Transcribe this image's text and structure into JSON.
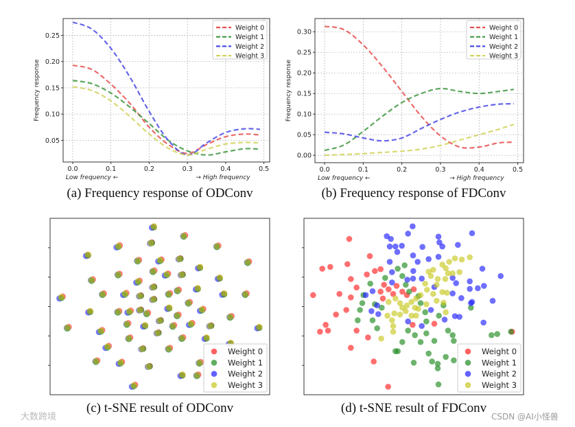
{
  "captions": {
    "a": "(a) Frequency response of ODConv",
    "b": "(b) Frequency response of FDConv",
    "c": "(c) t-SNE result of ODConv",
    "d": "(d) t-SNE result of FDConv"
  },
  "watermarks": {
    "left": "大数跨境",
    "right": "CSDN @AI小怪兽"
  },
  "colors": {
    "line": [
      "#e8504f",
      "#3f963f",
      "#4a4ae6",
      "#d2d25a"
    ],
    "scatter": [
      "#ff2020",
      "#1f8a1f",
      "#2020ff",
      "#c8c820"
    ]
  },
  "chart_data": [
    {
      "type": "line",
      "id": "a",
      "ylabel": "Frequency response",
      "xnote_left": "Low frequency ←",
      "xnote_right": "→ High frequency",
      "xlim": [
        -0.025,
        0.515
      ],
      "ylim": [
        0.0087,
        0.282
      ],
      "xticks": [
        "0.0",
        "0.1",
        "0.2",
        "0.3",
        "0.4",
        "0.5"
      ],
      "yticks": [
        "0.05",
        "0.10",
        "0.15",
        "0.20",
        "0.25"
      ],
      "grid": true,
      "legend": "top-right",
      "x": [
        0,
        0.05,
        0.1,
        0.15,
        0.2,
        0.25,
        0.3,
        0.35,
        0.4,
        0.45,
        0.49
      ],
      "series": [
        {
          "name": "Weight 0",
          "values": [
            0.193,
            0.185,
            0.157,
            0.12,
            0.075,
            0.042,
            0.025,
            0.042,
            0.057,
            0.062,
            0.06
          ]
        },
        {
          "name": "Weight 1",
          "values": [
            0.164,
            0.158,
            0.14,
            0.113,
            0.082,
            0.05,
            0.03,
            0.022,
            0.028,
            0.034,
            0.033
          ]
        },
        {
          "name": "Weight 2",
          "values": [
            0.275,
            0.262,
            0.225,
            0.17,
            0.105,
            0.05,
            0.022,
            0.045,
            0.065,
            0.072,
            0.071
          ]
        },
        {
          "name": "Weight 3",
          "values": [
            0.152,
            0.145,
            0.125,
            0.095,
            0.062,
            0.035,
            0.022,
            0.033,
            0.043,
            0.046,
            0.045
          ]
        }
      ]
    },
    {
      "type": "line",
      "id": "b",
      "ylabel": "Frequency response",
      "xnote_left": "Low frequency ←",
      "xnote_right": "→ High frequency",
      "xlim": [
        -0.025,
        0.515
      ],
      "ylim": [
        -0.018,
        0.332
      ],
      "xticks": [
        "0.0",
        "0.1",
        "0.2",
        "0.3",
        "0.4",
        "0.5"
      ],
      "yticks": [
        "0.00",
        "0.05",
        "0.10",
        "0.15",
        "0.20",
        "0.25",
        "0.30"
      ],
      "grid": true,
      "legend": "top-right",
      "x": [
        0,
        0.05,
        0.1,
        0.15,
        0.2,
        0.25,
        0.3,
        0.35,
        0.4,
        0.45,
        0.49
      ],
      "series": [
        {
          "name": "Weight 0",
          "values": [
            0.313,
            0.305,
            0.268,
            0.215,
            0.155,
            0.095,
            0.047,
            0.02,
            0.02,
            0.03,
            0.032
          ]
        },
        {
          "name": "Weight 1",
          "values": [
            0.012,
            0.025,
            0.058,
            0.095,
            0.128,
            0.15,
            0.162,
            0.155,
            0.15,
            0.155,
            0.16
          ]
        },
        {
          "name": "Weight 2",
          "values": [
            0.056,
            0.052,
            0.042,
            0.035,
            0.042,
            0.065,
            0.087,
            0.105,
            0.117,
            0.124,
            0.125
          ]
        },
        {
          "name": "Weight 3",
          "values": [
            0.0,
            0.002,
            0.004,
            0.007,
            0.01,
            0.015,
            0.024,
            0.037,
            0.05,
            0.063,
            0.075
          ]
        }
      ]
    },
    {
      "type": "scatter",
      "id": "c",
      "legend": "bottom-right",
      "xlim": [
        0,
        100
      ],
      "ylim": [
        0,
        100
      ],
      "series_names": [
        "Weight 0",
        "Weight 1",
        "Weight 2",
        "Weight 3"
      ],
      "note": "all four weights overlap at each cluster",
      "clusters": [
        [
          47,
          95
        ],
        [
          61,
          90
        ],
        [
          31,
          84
        ],
        [
          46,
          86
        ],
        [
          76,
          84
        ],
        [
          17,
          79
        ],
        [
          40,
          76
        ],
        [
          50,
          76
        ],
        [
          59,
          77
        ],
        [
          90,
          75
        ],
        [
          68,
          72
        ],
        [
          47,
          70
        ],
        [
          53,
          68
        ],
        [
          60,
          68
        ],
        [
          31,
          68
        ],
        [
          77,
          66
        ],
        [
          19,
          65
        ],
        [
          40,
          64
        ],
        [
          47,
          61
        ],
        [
          58,
          59
        ],
        [
          67,
          60
        ],
        [
          24,
          57
        ],
        [
          34,
          57
        ],
        [
          41,
          56
        ],
        [
          54,
          57
        ],
        [
          79,
          57
        ],
        [
          89,
          57
        ],
        [
          5,
          55
        ],
        [
          47,
          54
        ],
        [
          63,
          52
        ],
        [
          18,
          47
        ],
        [
          31,
          47
        ],
        [
          36,
          47
        ],
        [
          41,
          48
        ],
        [
          44,
          46
        ],
        [
          54,
          49
        ],
        [
          58,
          45
        ],
        [
          69,
          48
        ],
        [
          50,
          42
        ],
        [
          35,
          40
        ],
        [
          43,
          39
        ],
        [
          56,
          39
        ],
        [
          64,
          40
        ],
        [
          73,
          39
        ],
        [
          82,
          44
        ],
        [
          95,
          38
        ],
        [
          8,
          38
        ],
        [
          23,
          36
        ],
        [
          49,
          35
        ],
        [
          60,
          32
        ],
        [
          71,
          32
        ],
        [
          36,
          32
        ],
        [
          26,
          27
        ],
        [
          42,
          26
        ],
        [
          54,
          26
        ],
        [
          82,
          29
        ],
        [
          21,
          19
        ],
        [
          32,
          18
        ],
        [
          45,
          16
        ],
        [
          68,
          18
        ],
        [
          60,
          11
        ],
        [
          67,
          11
        ],
        [
          38,
          5
        ]
      ]
    },
    {
      "type": "scatter",
      "id": "d",
      "legend": "bottom-right",
      "xlim": [
        1,
        97
      ],
      "ylim": [
        2,
        79
      ],
      "series": [
        {
          "name": "Weight 0",
          "points": [
            [
              20.8,
              70
            ],
            [
              29.8,
              62.5
            ],
            [
              9,
              57
            ],
            [
              12.5,
              57.8
            ],
            [
              20,
              59
            ],
            [
              21.5,
              52.5
            ],
            [
              32,
              56
            ],
            [
              34.5,
              56.8
            ],
            [
              28.5,
              54.5
            ],
            [
              24,
              48.8
            ],
            [
              16.5,
              46
            ],
            [
              5,
              45.5
            ],
            [
              21.5,
              44.5
            ],
            [
              19.5,
              39
            ],
            [
              15,
              37
            ],
            [
              10.5,
              32.5
            ],
            [
              8,
              29.5
            ],
            [
              11.5,
              30
            ],
            [
              24,
              30
            ],
            [
              29,
              27
            ],
            [
              21.5,
              22.5
            ],
            [
              31.5,
              16.5
            ],
            [
              37.8,
              5.5
            ],
            [
              36,
              50
            ],
            [
              34.5,
              47
            ],
            [
              38,
              48
            ],
            [
              41.5,
              49.5
            ],
            [
              40,
              46
            ],
            [
              44,
              47
            ],
            [
              46,
              45.5
            ],
            [
              49,
              48
            ],
            [
              35.5,
              44
            ],
            [
              48.5,
              32.5
            ],
            [
              58,
              33
            ],
            [
              92,
              29.5
            ]
          ]
        },
        {
          "name": "Weight 1",
          "points": [
            [
              45,
              58.5
            ],
            [
              42,
              57
            ],
            [
              36.5,
              53
            ],
            [
              44,
              53.8
            ],
            [
              30,
              50.5
            ],
            [
              27,
              45.5
            ],
            [
              26.5,
              42
            ],
            [
              32,
              41.5
            ],
            [
              35,
              40
            ],
            [
              25.5,
              39
            ],
            [
              24.5,
              34.5
            ],
            [
              31,
              34.5
            ],
            [
              33,
              31
            ],
            [
              45.5,
              50
            ],
            [
              47,
              47
            ],
            [
              51,
              45
            ],
            [
              52,
              42
            ],
            [
              54,
              38
            ],
            [
              54.5,
              34
            ],
            [
              60,
              36.5
            ],
            [
              62,
              41
            ],
            [
              46.5,
              30
            ],
            [
              49.5,
              28
            ],
            [
              54.5,
              28.8
            ],
            [
              44,
              25
            ],
            [
              52,
              25
            ],
            [
              58,
              25.5
            ],
            [
              64,
              30
            ],
            [
              66,
              28
            ],
            [
              66.5,
              25.5
            ],
            [
              42,
              21
            ],
            [
              41,
              21
            ],
            [
              55.5,
              20
            ],
            [
              57,
              16.5
            ],
            [
              59.5,
              15.5
            ],
            [
              59.5,
              13.5
            ],
            [
              49,
              16
            ],
            [
              63,
              18.5
            ],
            [
              66.5,
              17
            ],
            [
              83,
              28
            ],
            [
              85.5,
              28.5
            ],
            [
              91.5,
              29.5
            ],
            [
              74,
              40
            ],
            [
              59.8,
              6.5
            ]
          ]
        },
        {
          "name": "Weight 2",
          "points": [
            [
              37.2,
              71.2
            ],
            [
              39,
              70
            ],
            [
              46.5,
              72.3
            ],
            [
              48.5,
              75.5
            ],
            [
              59.8,
              71
            ],
            [
              60.2,
              68.5
            ],
            [
              61.5,
              66.7
            ],
            [
              74.5,
              72.5
            ],
            [
              38.5,
              66.7
            ],
            [
              41,
              66.7
            ],
            [
              43.8,
              67
            ],
            [
              41.8,
              64.3
            ],
            [
              52.8,
              66.5
            ],
            [
              68.3,
              67.4
            ],
            [
              48.7,
              62.8
            ],
            [
              50.7,
              60
            ],
            [
              55.5,
              61.2
            ],
            [
              59.8,
              62.2
            ],
            [
              38.5,
              60
            ],
            [
              48.8,
              56
            ],
            [
              46.2,
              52.2
            ],
            [
              48.7,
              52.7
            ],
            [
              52.5,
              52.7
            ],
            [
              39.5,
              55.5
            ],
            [
              39.5,
              51
            ],
            [
              31,
              47.2
            ],
            [
              28,
              45.5
            ],
            [
              33,
              41
            ],
            [
              30.5,
              38.5
            ],
            [
              33.5,
              37.2
            ],
            [
              46.5,
              34
            ],
            [
              52.5,
              32
            ],
            [
              56.5,
              39
            ],
            [
              62.5,
              34.8
            ],
            [
              67,
              36.3
            ],
            [
              69,
              36
            ],
            [
              79.5,
              33.5
            ],
            [
              74,
              42
            ],
            [
              74.5,
              42.5
            ],
            [
              83.5,
              43
            ],
            [
              69.8,
              44.2
            ],
            [
              66,
              46.2
            ],
            [
              73.5,
              48.2
            ],
            [
              77,
              48.5
            ],
            [
              79.7,
              49.5
            ],
            [
              73.5,
              51.5
            ],
            [
              67.5,
              50.7
            ],
            [
              66,
              53
            ],
            [
              79,
              57
            ],
            [
              87,
              53.8
            ],
            [
              58,
              49
            ]
          ]
        },
        {
          "name": "Weight 3",
          "points": [
            [
              54,
              50.5
            ],
            [
              54.8,
              47.8
            ],
            [
              55.5,
              55.7
            ],
            [
              57.5,
              56.5
            ],
            [
              56.5,
              53.8
            ],
            [
              59.5,
              52.5
            ],
            [
              63,
              57.2
            ],
            [
              64.5,
              60
            ],
            [
              66,
              55
            ],
            [
              64,
              55
            ],
            [
              67,
              61.5
            ],
            [
              70,
              61
            ],
            [
              73.5,
              62
            ],
            [
              69,
              55.5
            ],
            [
              61.5,
              58.8
            ],
            [
              59,
              50
            ],
            [
              62.8,
              52.5
            ],
            [
              61.5,
              46.8
            ],
            [
              63.5,
              46.5
            ],
            [
              57.5,
              46
            ],
            [
              59,
              43
            ],
            [
              62,
              42.2
            ],
            [
              63,
              38
            ],
            [
              38,
              42.5
            ],
            [
              41,
              44
            ],
            [
              43,
              42
            ],
            [
              44,
              40
            ],
            [
              46,
              41
            ],
            [
              48,
              42.5
            ],
            [
              50,
              44
            ],
            [
              52,
              45.5
            ],
            [
              49.5,
              40
            ],
            [
              50,
              36.5
            ],
            [
              48,
              36.5
            ],
            [
              45.5,
              38.5
            ],
            [
              43,
              37
            ],
            [
              40.5,
              37.5
            ],
            [
              37.5,
              36.5
            ],
            [
              39.5,
              34.5
            ],
            [
              40,
              32
            ],
            [
              40,
              29.5
            ],
            [
              34.8,
              26.5
            ],
            [
              51,
              39.5
            ],
            [
              54.5,
              41.5
            ]
          ]
        }
      ]
    }
  ]
}
